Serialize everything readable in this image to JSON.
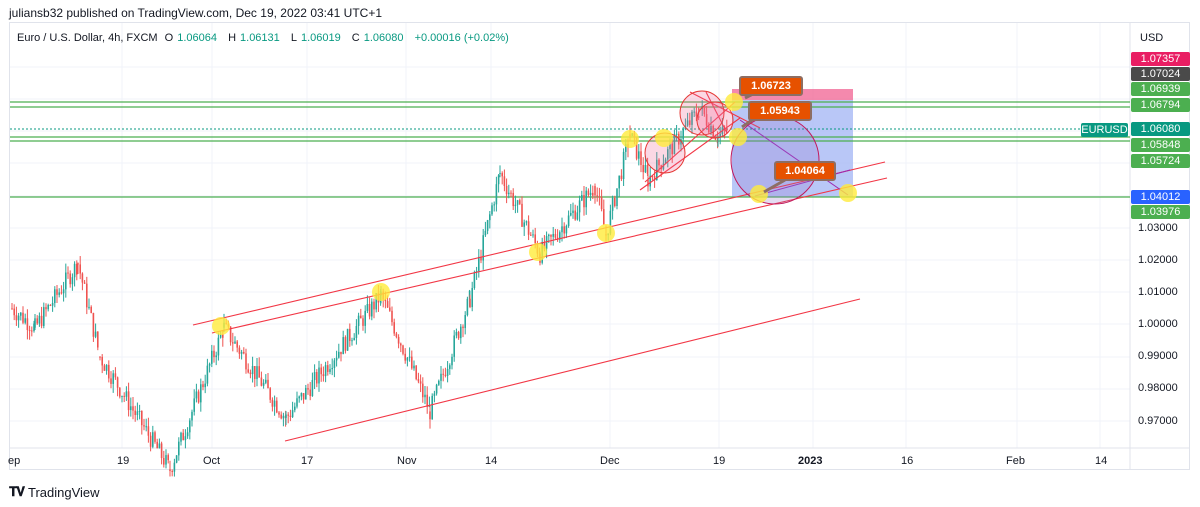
{
  "header": {
    "published": "juliansb32 published on TradingView.com, Dec 19, 2022 03:41 UTC+1"
  },
  "legend": {
    "title": "Euro / U.S. Dollar, 4h, FXCM",
    "open_label": "O",
    "open": "1.06064",
    "high_label": "H",
    "high": "1.06131",
    "low_label": "L",
    "low": "1.06019",
    "close_label": "C",
    "close": "1.06080",
    "change": "+0.00016 (+0.02%)"
  },
  "price_axis": {
    "currency": "USD",
    "symbol_tag": "EURUSD",
    "labels": [
      {
        "value": "1.07357",
        "color": "#e91e63"
      },
      {
        "value": "1.07024",
        "color": "#4a4a4a"
      },
      {
        "value": "1.06939",
        "color": "#4caf50"
      },
      {
        "value": "1.06794",
        "color": "#4caf50"
      },
      {
        "value": "1.06080",
        "color": "#089981"
      },
      {
        "value": "1.05848",
        "color": "#4caf50"
      },
      {
        "value": "1.05724",
        "color": "#4caf50"
      },
      {
        "value": "1.04012",
        "color": "#2962ff"
      },
      {
        "value": "1.03976",
        "color": "#4caf50"
      }
    ],
    "ticks": [
      "1.03000",
      "1.02000",
      "1.01000",
      "1.00000",
      "0.99000",
      "0.98000",
      "0.97000"
    ]
  },
  "time_axis": {
    "ticks": [
      {
        "label": "ep",
        "bold": false
      },
      {
        "label": "19",
        "bold": false
      },
      {
        "label": "Oct",
        "bold": false
      },
      {
        "label": "17",
        "bold": false
      },
      {
        "label": "Nov",
        "bold": false
      },
      {
        "label": "14",
        "bold": false
      },
      {
        "label": "Dec",
        "bold": false
      },
      {
        "label": "19",
        "bold": false
      },
      {
        "label": "2023",
        "bold": true
      },
      {
        "label": "16",
        "bold": false
      },
      {
        "label": "Feb",
        "bold": false
      },
      {
        "label": "14",
        "bold": false
      }
    ]
  },
  "callouts": {
    "c1": "1.06723",
    "c2": "1.05943",
    "c3": "1.04064"
  },
  "footer": {
    "brand": "TradingView"
  },
  "colors": {
    "up": "#26a69a",
    "down": "#ef5350",
    "trendline": "#f23645",
    "hline": "#4caf50",
    "highlight": "#ffeb3b"
  },
  "chart_data": {
    "type": "candlestick",
    "title": "Euro / U.S. Dollar, 4h, FXCM",
    "symbol": "EURUSD",
    "ylabel": "USD",
    "ylim": [
      0.963,
      1.076
    ],
    "x_ticks": [
      "Sep",
      "19",
      "Oct",
      "17",
      "Nov",
      "14",
      "Dec",
      "19",
      "2023",
      "16",
      "Feb",
      "14"
    ],
    "y_ticks": [
      0.97,
      0.98,
      0.99,
      1.0,
      1.01,
      1.02,
      1.03
    ],
    "last_ohlc": {
      "open": 1.06064,
      "high": 1.06131,
      "low": 1.06019,
      "close": 1.0608,
      "change": 0.00016,
      "change_pct": 0.02
    },
    "horizontal_levels": [
      1.06939,
      1.06794,
      1.05848,
      1.05724,
      1.04012
    ],
    "position_box": {
      "stop": 1.07357,
      "entry": 1.07024,
      "target": 1.03976
    },
    "annotations": [
      1.06723,
      1.05943,
      1.04064
    ],
    "approx_path": [
      {
        "date": "Sep 12",
        "price": 1.005
      },
      {
        "date": "Sep 15",
        "price": 0.999
      },
      {
        "date": "Sep 20",
        "price": 1.019
      },
      {
        "date": "Sep 23",
        "price": 0.99
      },
      {
        "date": "Sep 28",
        "price": 0.955
      },
      {
        "date": "Oct 4",
        "price": 0.999
      },
      {
        "date": "Oct 13",
        "price": 0.971
      },
      {
        "date": "Oct 27",
        "price": 1.009
      },
      {
        "date": "Nov 3",
        "price": 0.973
      },
      {
        "date": "Nov 10",
        "price": 1.008
      },
      {
        "date": "Nov 15",
        "price": 1.047
      },
      {
        "date": "Nov 21",
        "price": 1.022
      },
      {
        "date": "Nov 29",
        "price": 1.043
      },
      {
        "date": "Dec 1",
        "price": 1.028
      },
      {
        "date": "Dec 5",
        "price": 1.059
      },
      {
        "date": "Dec 7",
        "price": 1.045
      },
      {
        "date": "Dec 13",
        "price": 1.067
      },
      {
        "date": "Dec 16",
        "price": 1.058
      },
      {
        "date": "Dec 19",
        "price": 1.0608
      }
    ]
  }
}
